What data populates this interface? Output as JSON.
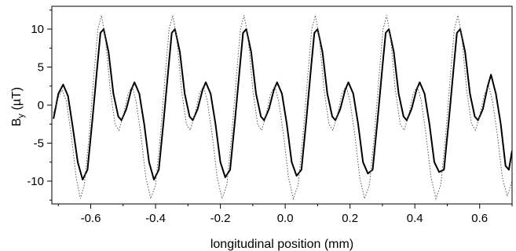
{
  "chart_data": {
    "type": "line",
    "title": "",
    "xlabel": "longitudinal position (mm)",
    "ylabel_main": "B",
    "ylabel_sub": "y",
    "ylabel_unit": " (µT)",
    "xlim": [
      -0.72,
      0.7
    ],
    "ylim": [
      -13,
      13
    ],
    "xticks": [
      -0.6,
      -0.4,
      -0.2,
      0.0,
      0.2,
      0.4,
      0.6
    ],
    "xtick_labels": [
      "-0.6",
      "-0.4",
      "-0.2",
      "0.0",
      "0.2",
      "0.4",
      "0.6"
    ],
    "yticks": [
      10,
      5,
      0,
      -5,
      -10
    ],
    "ytick_labels": [
      "10",
      "5",
      "0",
      "-5",
      "-10"
    ],
    "grid": false,
    "legend": "none",
    "series": [
      {
        "style": "solid",
        "color": "#000000",
        "points": [
          [
            -0.715,
            -1.8
          ],
          [
            -0.7,
            1.5
          ],
          [
            -0.685,
            2.7
          ],
          [
            -0.67,
            1.2
          ],
          [
            -0.655,
            -3.0
          ],
          [
            -0.64,
            -7.5
          ],
          [
            -0.625,
            -9.8
          ],
          [
            -0.61,
            -8.5
          ],
          [
            -0.595,
            -2.0
          ],
          [
            -0.58,
            5.0
          ],
          [
            -0.57,
            9.5
          ],
          [
            -0.56,
            10.0
          ],
          [
            -0.545,
            7.0
          ],
          [
            -0.53,
            1.5
          ],
          [
            -0.515,
            -1.5
          ],
          [
            -0.505,
            -2.0
          ],
          [
            -0.49,
            -0.5
          ],
          [
            -0.475,
            2.0
          ],
          [
            -0.465,
            3.0
          ],
          [
            -0.45,
            1.5
          ],
          [
            -0.435,
            -2.5
          ],
          [
            -0.42,
            -7.5
          ],
          [
            -0.405,
            -9.8
          ],
          [
            -0.39,
            -8.5
          ],
          [
            -0.375,
            -2.0
          ],
          [
            -0.36,
            5.0
          ],
          [
            -0.35,
            9.5
          ],
          [
            -0.34,
            10.0
          ],
          [
            -0.325,
            7.0
          ],
          [
            -0.31,
            1.5
          ],
          [
            -0.295,
            -1.5
          ],
          [
            -0.285,
            -2.0
          ],
          [
            -0.27,
            -0.5
          ],
          [
            -0.255,
            2.0
          ],
          [
            -0.245,
            3.0
          ],
          [
            -0.23,
            1.5
          ],
          [
            -0.215,
            -2.5
          ],
          [
            -0.2,
            -7.5
          ],
          [
            -0.185,
            -9.5
          ],
          [
            -0.17,
            -8.5
          ],
          [
            -0.155,
            -2.0
          ],
          [
            -0.14,
            5.0
          ],
          [
            -0.13,
            9.5
          ],
          [
            -0.12,
            10.0
          ],
          [
            -0.105,
            7.0
          ],
          [
            -0.09,
            1.5
          ],
          [
            -0.075,
            -1.5
          ],
          [
            -0.065,
            -2.0
          ],
          [
            -0.05,
            -0.5
          ],
          [
            -0.035,
            2.0
          ],
          [
            -0.025,
            3.0
          ],
          [
            -0.01,
            1.5
          ],
          [
            0.005,
            -2.5
          ],
          [
            0.02,
            -7.5
          ],
          [
            0.035,
            -9.3
          ],
          [
            0.05,
            -8.5
          ],
          [
            0.065,
            -2.0
          ],
          [
            0.08,
            5.0
          ],
          [
            0.09,
            9.5
          ],
          [
            0.1,
            10.0
          ],
          [
            0.115,
            7.0
          ],
          [
            0.13,
            1.5
          ],
          [
            0.145,
            -1.5
          ],
          [
            0.155,
            -2.0
          ],
          [
            0.17,
            -0.5
          ],
          [
            0.185,
            2.0
          ],
          [
            0.195,
            3.0
          ],
          [
            0.21,
            1.5
          ],
          [
            0.225,
            -2.5
          ],
          [
            0.24,
            -7.5
          ],
          [
            0.255,
            -9.0
          ],
          [
            0.27,
            -8.5
          ],
          [
            0.285,
            -2.0
          ],
          [
            0.3,
            5.0
          ],
          [
            0.31,
            9.5
          ],
          [
            0.32,
            10.0
          ],
          [
            0.335,
            7.0
          ],
          [
            0.35,
            1.5
          ],
          [
            0.365,
            -1.5
          ],
          [
            0.375,
            -2.0
          ],
          [
            0.39,
            -0.5
          ],
          [
            0.405,
            2.0
          ],
          [
            0.415,
            3.0
          ],
          [
            0.43,
            1.5
          ],
          [
            0.445,
            -2.5
          ],
          [
            0.46,
            -7.5
          ],
          [
            0.475,
            -8.8
          ],
          [
            0.49,
            -8.5
          ],
          [
            0.505,
            -2.0
          ],
          [
            0.52,
            5.0
          ],
          [
            0.53,
            9.5
          ],
          [
            0.54,
            10.0
          ],
          [
            0.555,
            7.0
          ],
          [
            0.57,
            1.5
          ],
          [
            0.585,
            -1.5
          ],
          [
            0.595,
            -2.0
          ],
          [
            0.61,
            -0.5
          ],
          [
            0.625,
            2.5
          ],
          [
            0.635,
            4.0
          ],
          [
            0.65,
            1.5
          ],
          [
            0.665,
            -2.5
          ],
          [
            0.68,
            -8.0
          ],
          [
            0.69,
            -8.5
          ],
          [
            0.7,
            -6.0
          ]
        ]
      },
      {
        "style": "dotted",
        "color": "#555555",
        "points": [
          [
            -0.715,
            -1.0
          ],
          [
            -0.7,
            1.0
          ],
          [
            -0.688,
            2.0
          ],
          [
            -0.675,
            0.5
          ],
          [
            -0.66,
            -4.0
          ],
          [
            -0.645,
            -9.5
          ],
          [
            -0.632,
            -12.3
          ],
          [
            -0.62,
            -10.5
          ],
          [
            -0.605,
            -4.0
          ],
          [
            -0.59,
            4.0
          ],
          [
            -0.578,
            10.0
          ],
          [
            -0.567,
            11.8
          ],
          [
            -0.555,
            9.0
          ],
          [
            -0.54,
            2.0
          ],
          [
            -0.525,
            -2.5
          ],
          [
            -0.513,
            -3.3
          ],
          [
            -0.5,
            -1.5
          ],
          [
            -0.485,
            1.5
          ],
          [
            -0.472,
            2.5
          ],
          [
            -0.46,
            0.5
          ],
          [
            -0.445,
            -4.0
          ],
          [
            -0.43,
            -9.5
          ],
          [
            -0.415,
            -12.3
          ],
          [
            -0.4,
            -10.5
          ],
          [
            -0.385,
            -4.0
          ],
          [
            -0.37,
            4.0
          ],
          [
            -0.358,
            10.0
          ],
          [
            -0.347,
            11.8
          ],
          [
            -0.335,
            9.0
          ],
          [
            -0.32,
            2.0
          ],
          [
            -0.305,
            -2.5
          ],
          [
            -0.293,
            -3.3
          ],
          [
            -0.28,
            -1.5
          ],
          [
            -0.265,
            1.5
          ],
          [
            -0.252,
            2.5
          ],
          [
            -0.24,
            0.5
          ],
          [
            -0.225,
            -4.0
          ],
          [
            -0.21,
            -9.5
          ],
          [
            -0.195,
            -12.3
          ],
          [
            -0.18,
            -10.5
          ],
          [
            -0.165,
            -4.0
          ],
          [
            -0.15,
            4.0
          ],
          [
            -0.138,
            10.0
          ],
          [
            -0.127,
            11.8
          ],
          [
            -0.115,
            9.0
          ],
          [
            -0.1,
            2.0
          ],
          [
            -0.085,
            -2.5
          ],
          [
            -0.073,
            -3.3
          ],
          [
            -0.06,
            -1.5
          ],
          [
            -0.045,
            1.5
          ],
          [
            -0.032,
            2.5
          ],
          [
            -0.02,
            0.5
          ],
          [
            -0.005,
            -4.0
          ],
          [
            0.01,
            -9.5
          ],
          [
            0.025,
            -12.3
          ],
          [
            0.04,
            -10.5
          ],
          [
            0.055,
            -4.0
          ],
          [
            0.07,
            4.0
          ],
          [
            0.082,
            10.0
          ],
          [
            0.093,
            11.8
          ],
          [
            0.105,
            9.0
          ],
          [
            0.12,
            2.0
          ],
          [
            0.135,
            -2.5
          ],
          [
            0.147,
            -3.3
          ],
          [
            0.16,
            -1.5
          ],
          [
            0.175,
            1.5
          ],
          [
            0.188,
            2.5
          ],
          [
            0.2,
            0.5
          ],
          [
            0.215,
            -4.0
          ],
          [
            0.23,
            -9.5
          ],
          [
            0.245,
            -12.3
          ],
          [
            0.26,
            -10.5
          ],
          [
            0.275,
            -4.0
          ],
          [
            0.29,
            4.0
          ],
          [
            0.302,
            10.0
          ],
          [
            0.313,
            11.8
          ],
          [
            0.325,
            9.0
          ],
          [
            0.34,
            2.0
          ],
          [
            0.355,
            -2.5
          ],
          [
            0.367,
            -3.3
          ],
          [
            0.38,
            -1.5
          ],
          [
            0.395,
            1.5
          ],
          [
            0.408,
            2.5
          ],
          [
            0.42,
            0.5
          ],
          [
            0.435,
            -4.0
          ],
          [
            0.45,
            -9.5
          ],
          [
            0.465,
            -12.3
          ],
          [
            0.48,
            -10.5
          ],
          [
            0.495,
            -4.0
          ],
          [
            0.51,
            4.0
          ],
          [
            0.522,
            10.0
          ],
          [
            0.533,
            11.8
          ],
          [
            0.545,
            9.0
          ],
          [
            0.56,
            2.0
          ],
          [
            0.575,
            -2.5
          ],
          [
            0.587,
            -3.3
          ],
          [
            0.6,
            -1.5
          ],
          [
            0.615,
            1.5
          ],
          [
            0.628,
            2.5
          ],
          [
            0.64,
            0.5
          ],
          [
            0.655,
            -4.0
          ],
          [
            0.67,
            -9.5
          ],
          [
            0.685,
            -12.0
          ],
          [
            0.7,
            -10.0
          ]
        ]
      }
    ]
  }
}
